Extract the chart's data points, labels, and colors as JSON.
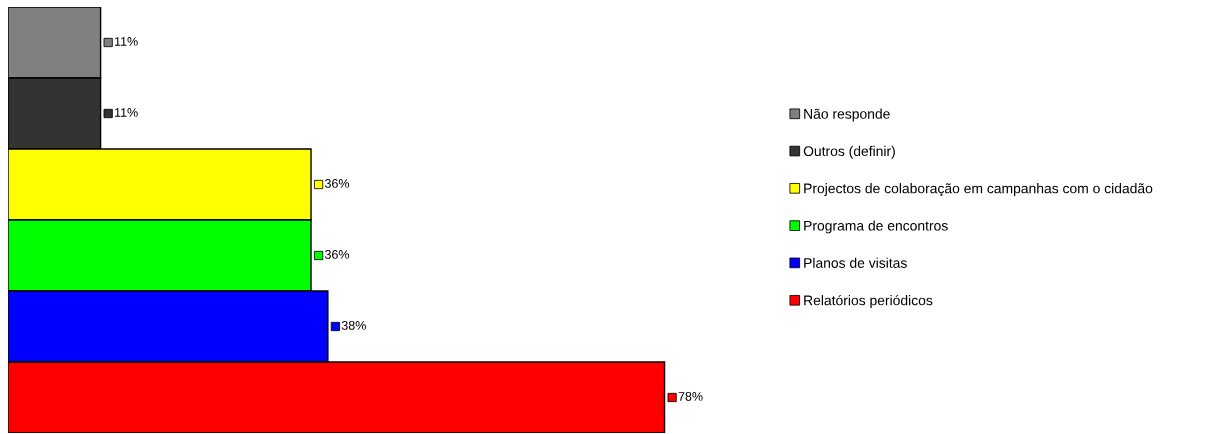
{
  "chart_data": {
    "type": "bar",
    "orientation": "horizontal",
    "stacked": true,
    "legend": "right",
    "categories": [
      null,
      null,
      null,
      null,
      null,
      null
    ],
    "series": [
      {
        "name": "Não responde",
        "color": "#808080",
        "values": [
          11,
          null,
          null,
          null,
          null,
          null
        ],
        "value_labels": [
          "11%",
          null,
          null,
          null,
          null,
          null
        ]
      },
      {
        "name": "Outros (definir)",
        "color": "#333333",
        "values": [
          null,
          11,
          null,
          null,
          null,
          null
        ],
        "value_labels": [
          null,
          "11%",
          null,
          null,
          null,
          null
        ]
      },
      {
        "name": "Projectos de colaboração em campanhas com o cidadão",
        "color": "#ffff00",
        "values": [
          null,
          null,
          36,
          null,
          null,
          null
        ],
        "value_labels": [
          null,
          null,
          "36%",
          null,
          null,
          null
        ]
      },
      {
        "name": "Programa de encontros",
        "color": "#00ff00",
        "values": [
          null,
          null,
          null,
          36,
          null,
          null
        ],
        "value_labels": [
          null,
          null,
          null,
          "36%",
          null,
          null
        ]
      },
      {
        "name": "Planos de visitas",
        "color": "#0000ff",
        "values": [
          null,
          null,
          null,
          null,
          38,
          null
        ],
        "value_labels": [
          null,
          null,
          null,
          null,
          "38%",
          null
        ]
      },
      {
        "name": "Relatórios periódicos",
        "color": "#ff0000",
        "values": [
          null,
          null,
          null,
          null,
          null,
          78
        ],
        "value_labels": [
          null,
          null,
          null,
          null,
          null,
          "78%"
        ]
      }
    ]
  }
}
